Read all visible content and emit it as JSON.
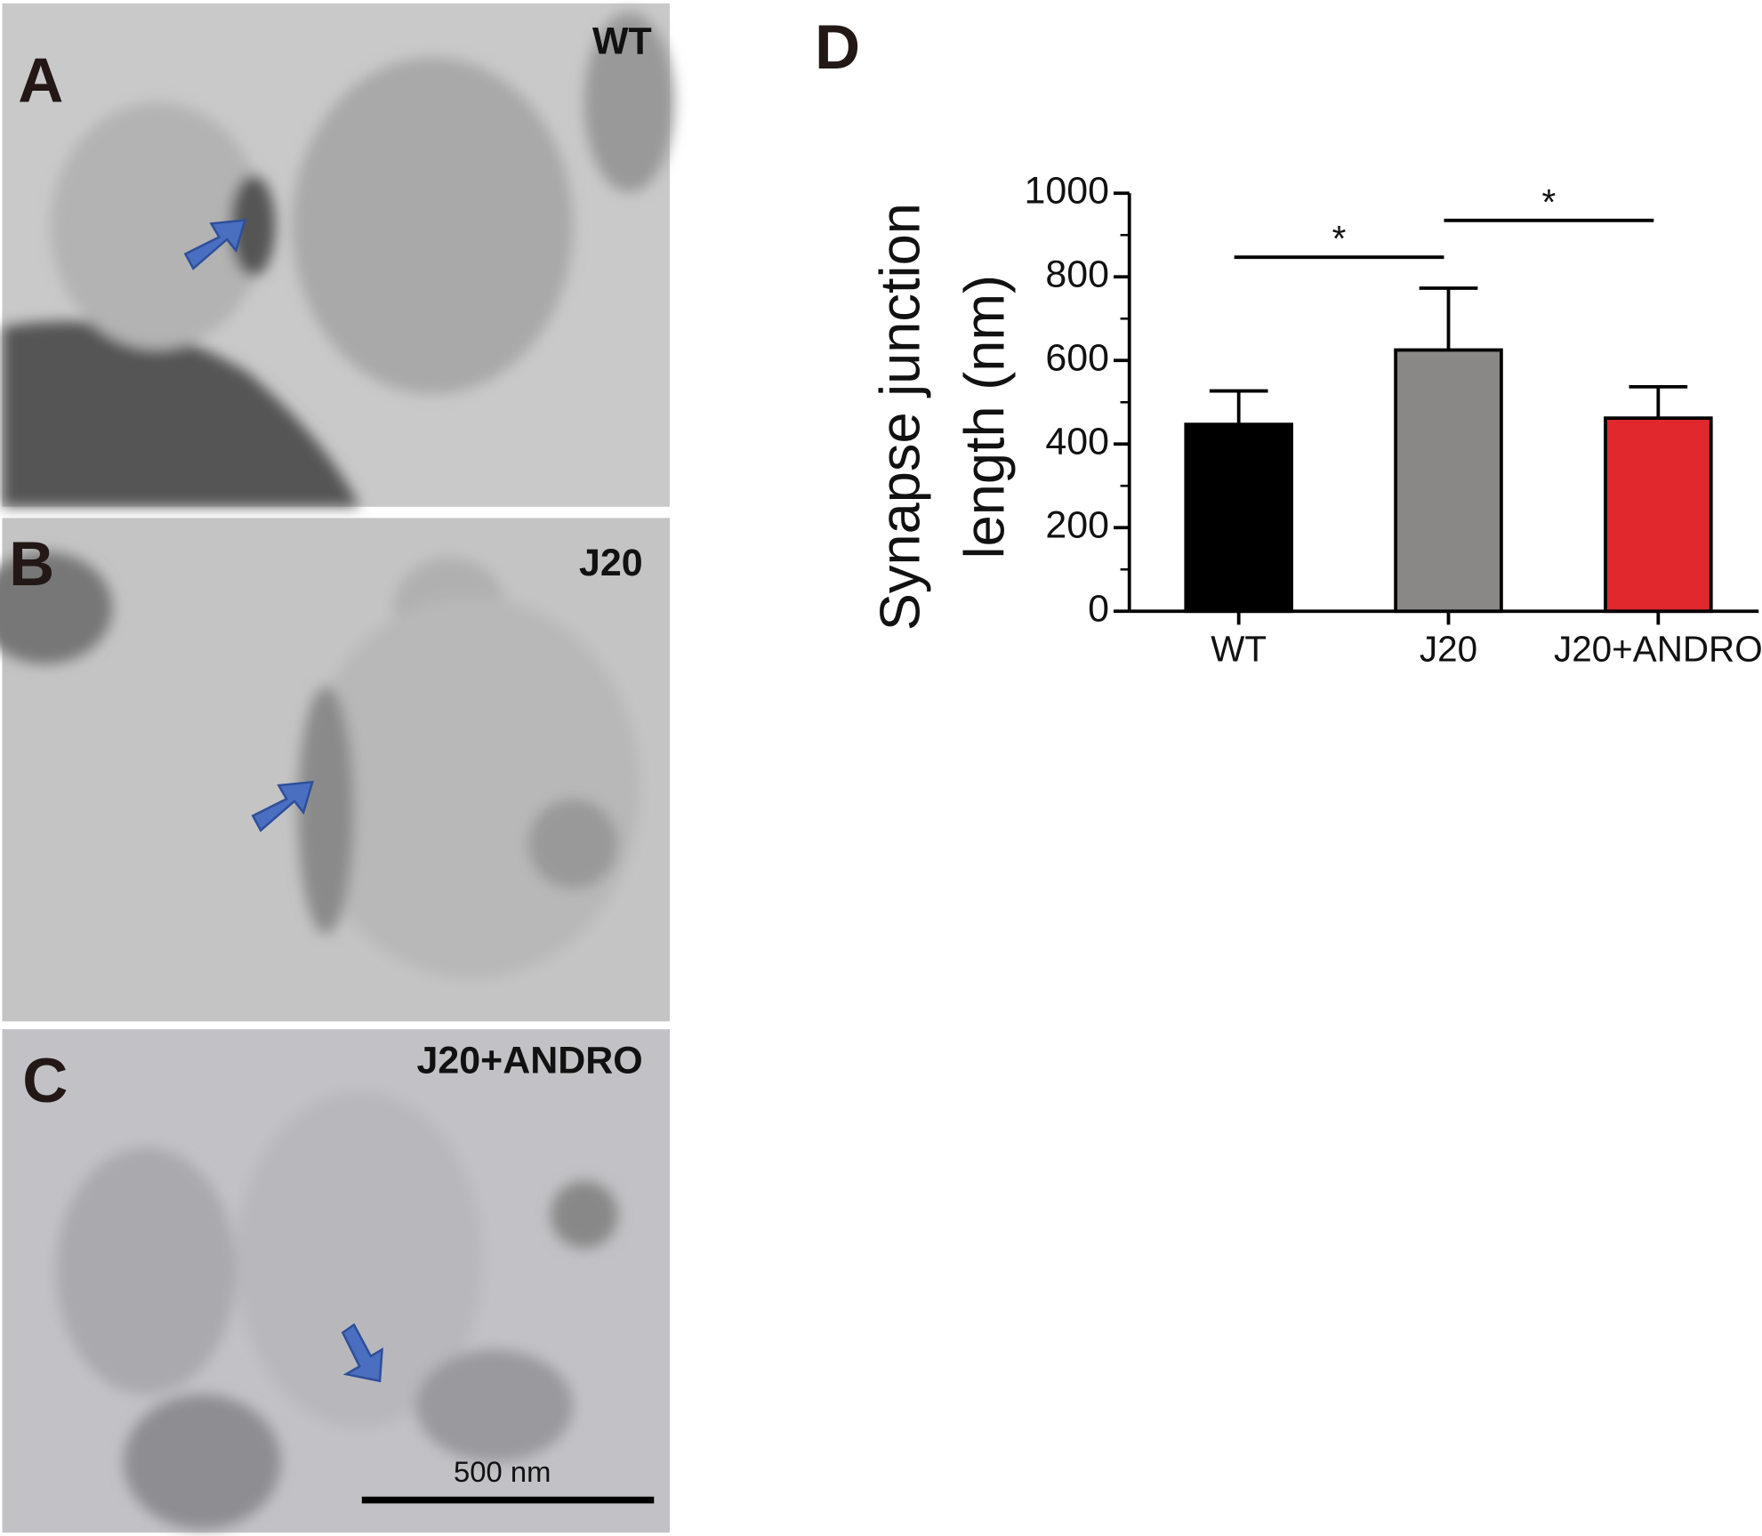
{
  "panels": [
    {
      "letter": "A",
      "label": "WT"
    },
    {
      "letter": "B",
      "label": "J20"
    },
    {
      "letter": "C",
      "label": "J20+ANDRO",
      "scale_bar": "500 nm"
    }
  ],
  "chart_data": {
    "type": "bar",
    "letter": "D",
    "ylabel": [
      "Synapse junction",
      "length (nm)"
    ],
    "categories": [
      "WT",
      "J20",
      "J20+ANDRO"
    ],
    "values": [
      447,
      625,
      462
    ],
    "errors": [
      80,
      148,
      75
    ],
    "colors": [
      "#000000",
      "#8a8886",
      "#e0282d"
    ],
    "ylim": [
      0,
      1000
    ],
    "yticks": [
      0,
      200,
      400,
      600,
      800,
      1000
    ],
    "yticks_minor": [
      100,
      300,
      500,
      700,
      900
    ],
    "annotations": [
      {
        "text": "*",
        "pair": [
          0,
          1
        ],
        "y": 847
      },
      {
        "text": "*",
        "pair": [
          1,
          2
        ],
        "y": 935
      }
    ]
  }
}
